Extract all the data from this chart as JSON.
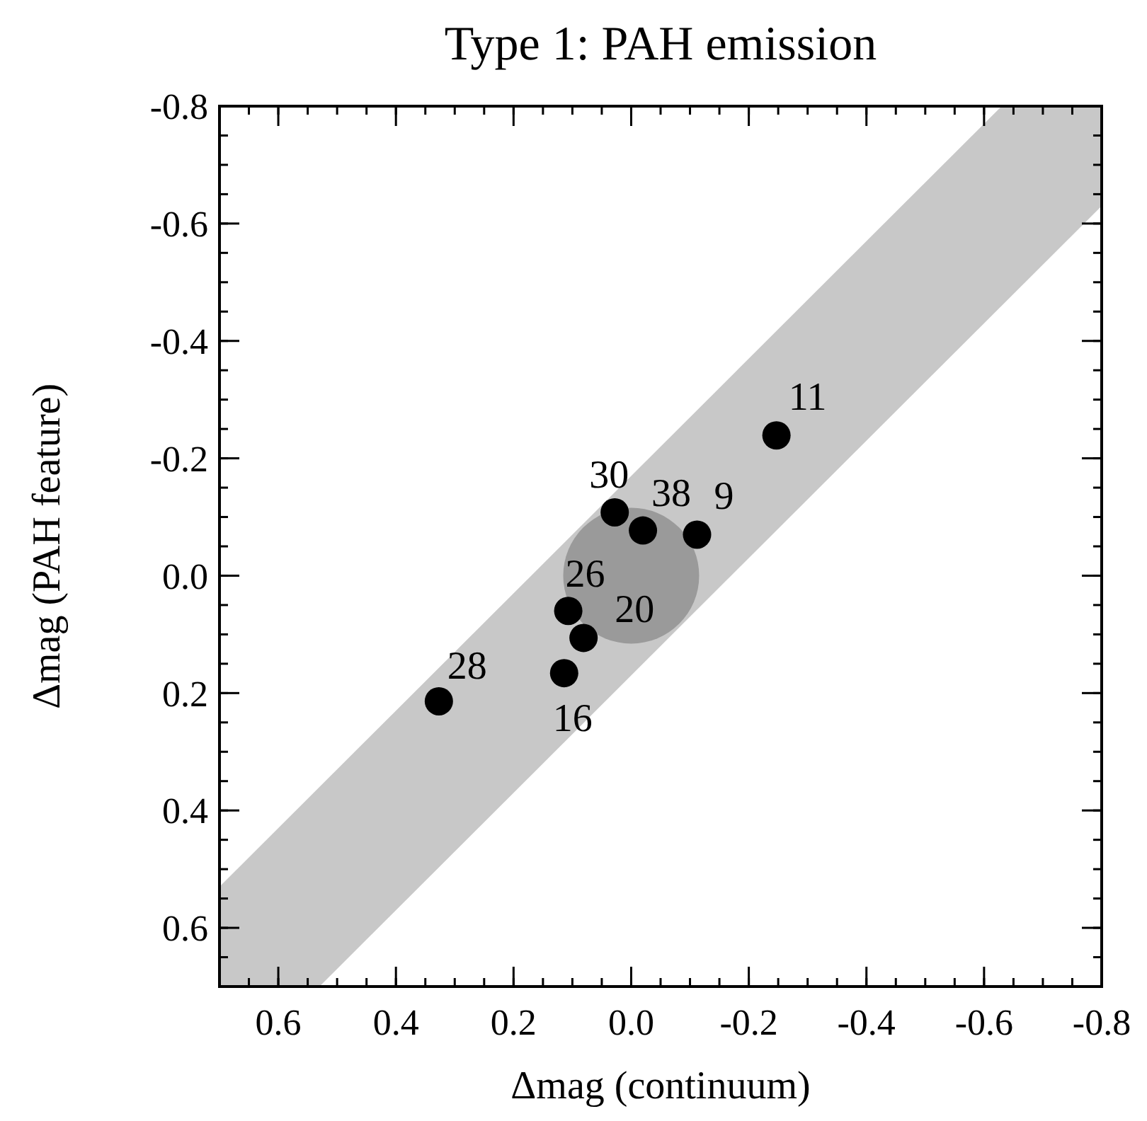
{
  "chart_data": {
    "type": "scatter",
    "title": "Type 1: PAH emission",
    "xlabel": "Δmag (continuum)",
    "ylabel": "Δmag (PAH feature)",
    "xlim": [
      0.7,
      -0.8
    ],
    "ylim": [
      0.7,
      -0.8
    ],
    "xticks": [
      0.6,
      0.4,
      0.2,
      {
        "value": 0,
        "label": "0.0"
      },
      -0.2,
      -0.4,
      -0.6,
      -0.8
    ],
    "yticks": [
      0.6,
      0.4,
      0.2,
      {
        "value": 0,
        "label": "0.0"
      },
      -0.2,
      -0.4,
      -0.6,
      -0.8
    ],
    "grid": false,
    "series": [
      {
        "type": "line",
        "color": "#c8c8c8",
        "x": [
          0.7,
          0.53,
          -0.63,
          -0.8
        ],
        "values": [
          null,
          null,
          null,
          null
        ],
        "lower": [
          0.53,
          0.36,
          -0.8,
          -0.8
        ],
        "upper": [
          0.7,
          0.7,
          -0.46,
          -0.63
        ]
      },
      {
        "type": "bubble",
        "color": "#9a9a9a",
        "x": [
          0
        ],
        "values": [
          0
        ],
        "sizes": [
          1
        ]
      },
      {
        "color": "#000000",
        "marker": "circle",
        "x": [
          -0.247,
          0.028,
          -0.02,
          -0.112,
          0.107,
          0.081,
          0.114,
          0.327
        ],
        "values": [
          -0.239,
          -0.108,
          -0.077,
          -0.07,
          0.06,
          0.106,
          0.166,
          0.214
        ]
      }
    ],
    "annotations": [
      {
        "text": "11",
        "x": -0.247,
        "y": -0.239
      },
      {
        "text": "30",
        "x": 0.028,
        "y": -0.108
      },
      {
        "text": "38",
        "x": -0.02,
        "y": -0.077
      },
      {
        "text": "9",
        "x": -0.112,
        "y": -0.07
      },
      {
        "text": "26",
        "x": 0.107,
        "y": 0.06
      },
      {
        "text": "20",
        "x": 0.081,
        "y": 0.106
      },
      {
        "text": "16",
        "x": 0.114,
        "y": 0.166
      },
      {
        "text": "28",
        "x": 0.327,
        "y": 0.214
      }
    ]
  }
}
